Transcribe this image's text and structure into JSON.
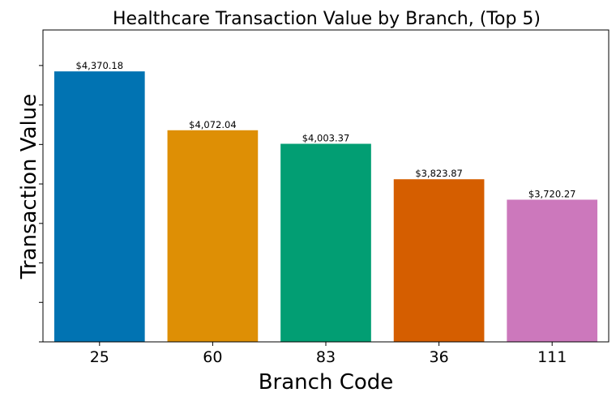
{
  "chart_data": {
    "type": "bar",
    "title": "Healthcare Transaction Value by Branch, (Top 5)",
    "xlabel": "Branch Code",
    "ylabel": "Transaction Value",
    "categories": [
      "25",
      "60",
      "83",
      "36",
      "111"
    ],
    "values": [
      4370.18,
      4072.04,
      4003.37,
      3823.87,
      3720.27
    ],
    "data_labels": [
      "$4,370.18",
      "$4,072.04",
      "$4,003.37",
      "$3,823.87",
      "$3,720.27"
    ],
    "colors": [
      "#0173b2",
      "#de8f05",
      "#029e73",
      "#d55e00",
      "#cc78bc"
    ],
    "ylim": [
      3000,
      4580
    ],
    "ytick_values": [
      3000,
      3200,
      3400,
      3600,
      3800,
      4000,
      4200,
      4400
    ],
    "ytick_labels_visible": false,
    "grid": false,
    "legend": "none"
  }
}
